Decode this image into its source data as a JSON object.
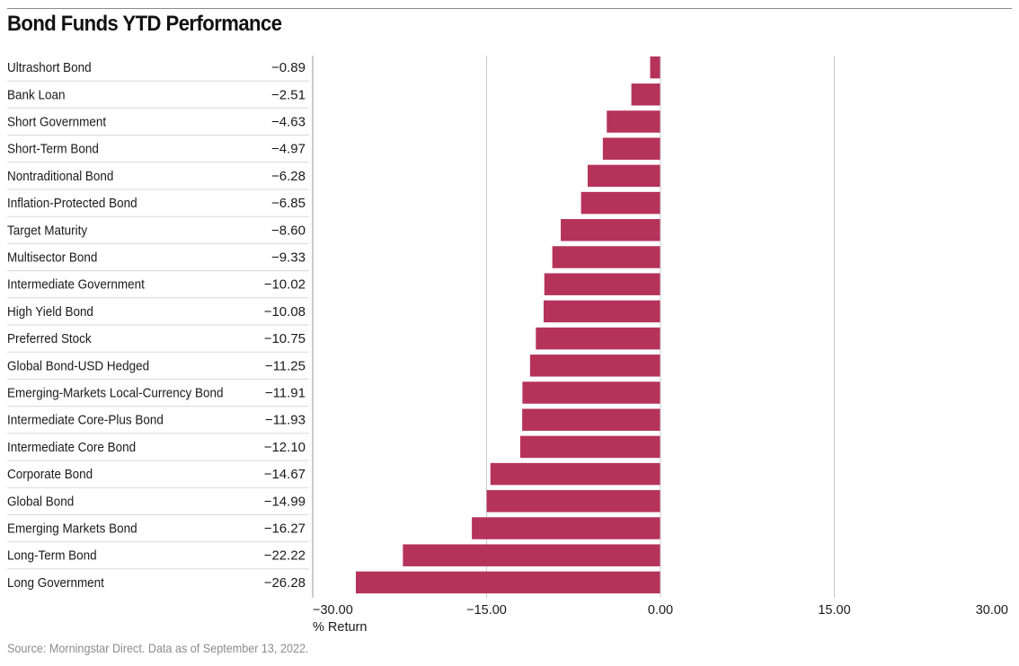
{
  "chart_data": {
    "type": "bar",
    "orientation": "horizontal",
    "title": "Bond Funds YTD Performance",
    "xlabel": "% Return",
    "ylabel": "",
    "xlim": [
      -30,
      30
    ],
    "x_ticks": [
      -30,
      -15,
      0,
      15,
      30
    ],
    "x_tick_labels": [
      "−30.00",
      "−15.00",
      "0.00",
      "15.00",
      "30.00"
    ],
    "categories": [
      "Ultrashort Bond",
      "Bank Loan",
      "Short Government",
      "Short-Term Bond",
      "Nontraditional Bond",
      "Inflation-Protected Bond",
      "Target Maturity",
      "Multisector Bond",
      "Intermediate Government",
      "High Yield Bond",
      "Preferred Stock",
      "Global Bond-USD Hedged",
      "Emerging-Markets Local-Currency Bond",
      "Intermediate Core-Plus Bond",
      "Intermediate Core Bond",
      "Corporate Bond",
      "Global Bond",
      "Emerging Markets Bond",
      "Long-Term Bond",
      "Long Government"
    ],
    "values": [
      -0.89,
      -2.51,
      -4.63,
      -4.97,
      -6.28,
      -6.85,
      -8.6,
      -9.33,
      -10.02,
      -10.08,
      -10.75,
      -11.25,
      -11.91,
      -11.93,
      -12.1,
      -14.67,
      -14.99,
      -16.27,
      -22.22,
      -26.28
    ],
    "value_labels": [
      "−0.89",
      "−2.51",
      "−4.63",
      "−4.97",
      "−6.28",
      "−6.85",
      "−8.60",
      "−9.33",
      "−10.02",
      "−10.08",
      "−10.75",
      "−11.25",
      "−11.91",
      "−11.93",
      "−12.10",
      "−14.67",
      "−14.99",
      "−16.27",
      "−22.22",
      "−26.28"
    ],
    "grid": "vertical",
    "legend": "none",
    "colors": {
      "bar": "#b5335a",
      "grid": "#c8c8c8",
      "row_divider": "#d9d9d9"
    }
  },
  "footer": {
    "source": "Source: Morningstar Direct. Data as of September 13, 2022."
  }
}
